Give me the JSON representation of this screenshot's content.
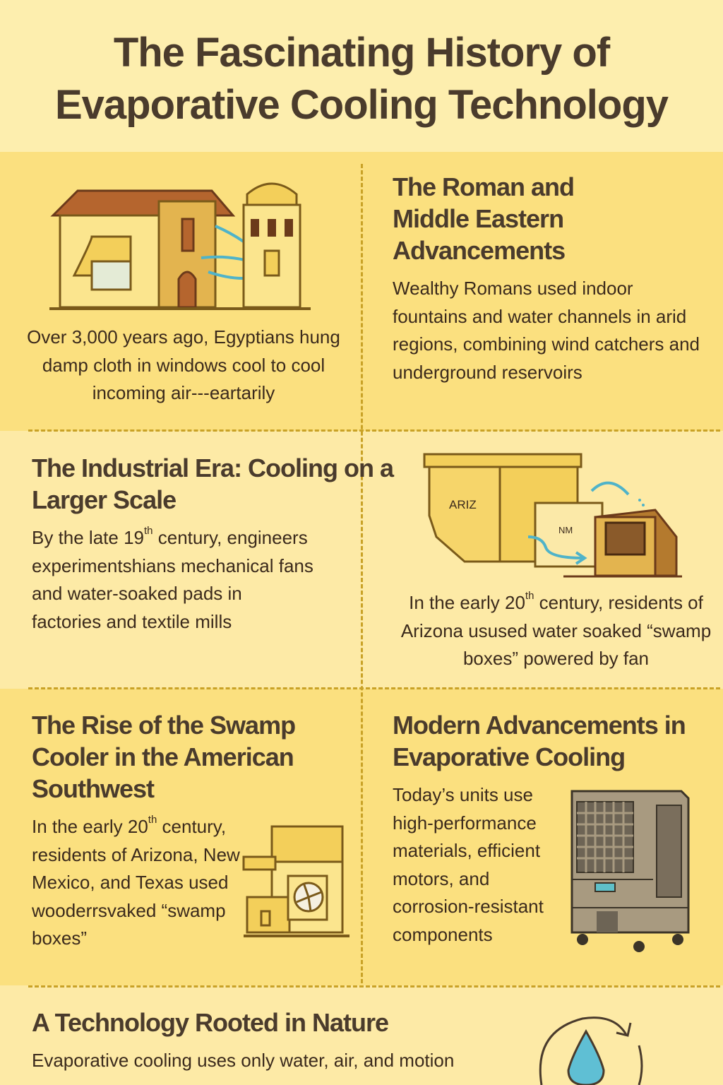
{
  "title": {
    "line1": "The Fascinating History of",
    "line2": "Evaporative Cooling Technology"
  },
  "colors": {
    "background": "#fdeeae",
    "band_dark": "#fbe07f",
    "band_light": "#fdeaa6",
    "heading": "#4a3b2c",
    "divider": "#c9a227",
    "water": "#4fb3c9"
  },
  "sections": {
    "egypt": {
      "body": "Over 3,000 years ago, Egyptians hung damp cloth in windows cool to cool incoming air---eartarily",
      "icon": "house-and-tower-illustration"
    },
    "roman": {
      "heading": "The Roman and Middle Eastern Advancements",
      "body": "Wealthy Romans used indoor fountains and water channels in arid regions, combining wind catchers and underground reservoirs"
    },
    "industrial": {
      "heading": "The Industrial Era: Cooling on a Larger Scale",
      "body_pre": "By the late 19",
      "body_sup": "th",
      "body_post": " century, engineers experimentshians mechanical fans and water-soaked pads in factories and textile mills"
    },
    "arizona": {
      "map_label_1": "ARIZ",
      "map_label_2": "NM",
      "body_pre": "In the early 20",
      "body_sup": "th",
      "body_post": " century, residents of Arizona usused water soaked “swamp boxes” powered by fan",
      "icon": "map-and-swamp-box-illustration"
    },
    "swamp": {
      "heading": "The Rise of the Swamp Cooler in the American Southwest",
      "body_pre": "In the early 20",
      "body_sup": "th",
      "body_post": " century, residents of Arizona, New Mexico, and Texas used wooderrsvaked “swamp boxes”",
      "icon": "fan-box-illustration"
    },
    "modern": {
      "heading": "Modern Advancements in Evaporative Cooling",
      "body": "Today’s units use high-performance materials, efficient motors, and corrosion-resistant components",
      "icon": "evaporative-cooler-illustration"
    },
    "nature": {
      "heading": "A Technology Rooted in Nature",
      "body": "Evaporative cooling uses only water, air, and motion",
      "icon": "water-cycle-drop-icon"
    }
  }
}
